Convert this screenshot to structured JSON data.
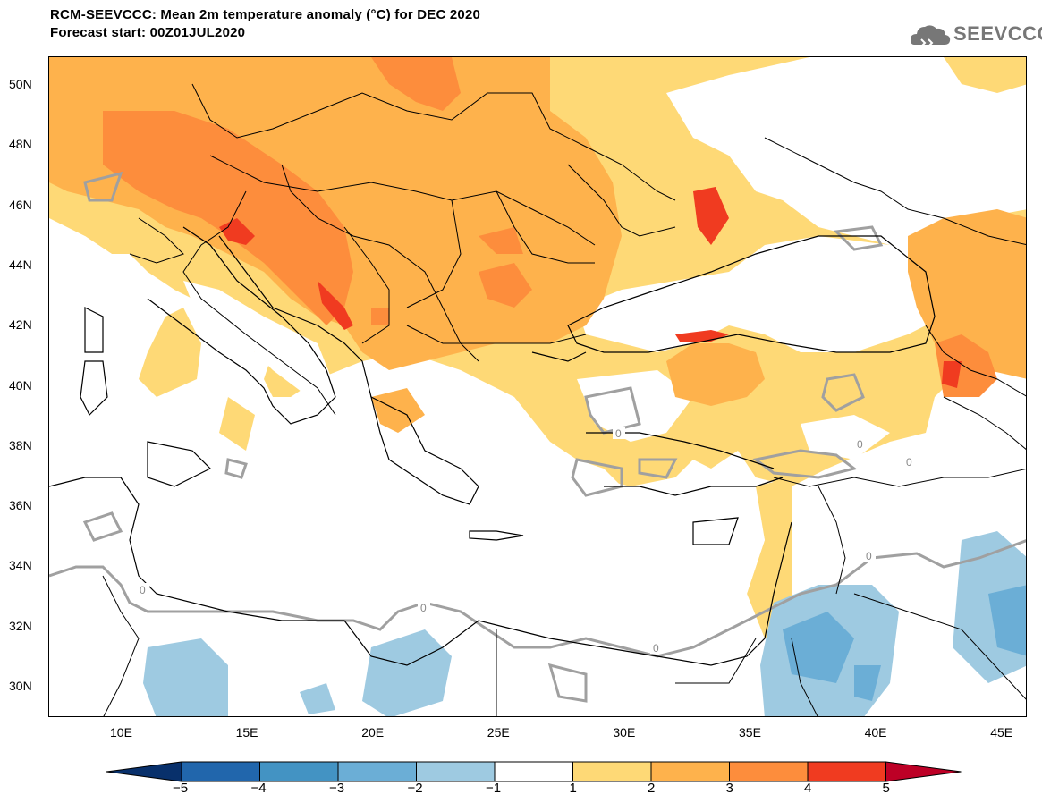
{
  "header": {
    "title": "RCM-SEEVCCC: Mean 2m temperature anomaly (°C) for DEC 2020",
    "subtitle": "Forecast start: 00Z01JUL2020"
  },
  "logo": {
    "text": "SEEVCCC",
    "icon": "cloud-icon"
  },
  "axes": {
    "lat_labels": [
      "50N",
      "48N",
      "46N",
      "44N",
      "42N",
      "40N",
      "38N",
      "36N",
      "34N",
      "32N",
      "30N"
    ],
    "lon_labels": [
      "10E",
      "15E",
      "20E",
      "25E",
      "30E",
      "35E",
      "40E",
      "45E"
    ]
  },
  "contour_label": "0",
  "colorbar": {
    "labels": [
      "−5",
      "−4",
      "−3",
      "−2",
      "−1",
      "1",
      "2",
      "3",
      "4",
      "5"
    ],
    "colors": [
      "#08306b",
      "#2166ac",
      "#4393c3",
      "#6baed6",
      "#9ecae1",
      "#ffffff",
      "#fed976",
      "#feb24c",
      "#fd8d3c",
      "#f03b20",
      "#bd0026"
    ]
  },
  "map_colors": {
    "anomaly_1_2": "#fed976",
    "anomaly_2_3": "#feb24c",
    "anomaly_3_4": "#fd8d3c",
    "anomaly_4_5": "#f03b20",
    "anomaly_m1_m2": "#9ecae1",
    "anomaly_m2_m3": "#6baed6",
    "zero_contour": "#a0a0a0",
    "borders": "#000000"
  }
}
